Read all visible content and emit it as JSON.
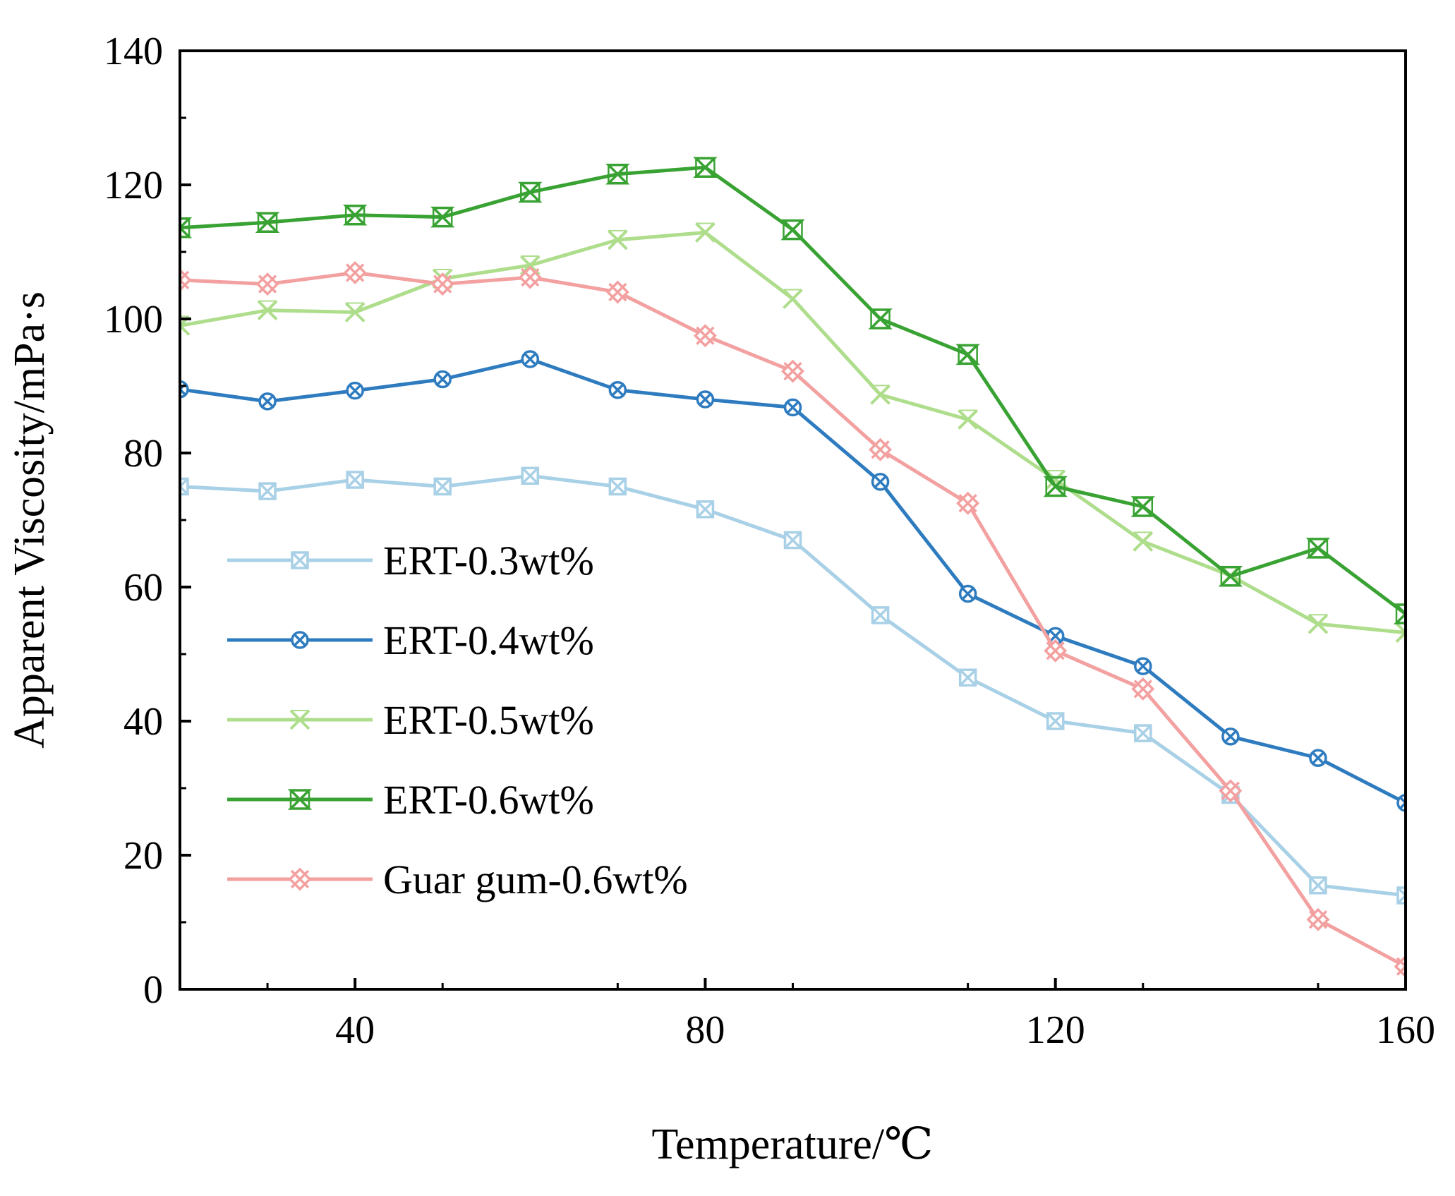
{
  "chart_data": {
    "type": "line",
    "title": "",
    "xlabel": "Temperature/℃",
    "ylabel": "Apparent Viscosity/mPa·s",
    "xlim": [
      20,
      160
    ],
    "ylim": [
      0,
      140
    ],
    "xticks": [
      40,
      80,
      120,
      160
    ],
    "yticks": [
      0,
      20,
      40,
      60,
      80,
      100,
      120,
      140
    ],
    "grid": false,
    "legend_position": "bottom-left",
    "x": [
      20,
      30,
      40,
      50,
      60,
      70,
      80,
      90,
      100,
      110,
      120,
      130,
      140,
      150,
      160
    ],
    "series": [
      {
        "name": "ERT-0.3wt%",
        "color": "#a8d0e6",
        "marker": "square-x",
        "values": [
          75,
          74.3,
          76,
          75,
          76.6,
          75,
          71.6,
          67,
          55.8,
          46.5,
          40,
          38.2,
          29,
          15.5,
          14
        ]
      },
      {
        "name": "ERT-0.4wt%",
        "color": "#2e7cbf",
        "marker": "circle-x",
        "values": [
          89.5,
          87.7,
          89.3,
          91,
          94,
          89.4,
          88,
          86.8,
          75.7,
          59,
          52.7,
          48.2,
          37.7,
          34.5,
          27.8
        ]
      },
      {
        "name": "ERT-0.5wt%",
        "color": "#aedd8c",
        "marker": "cross",
        "values": [
          99,
          101.3,
          101,
          106,
          108,
          111.8,
          112.9,
          103,
          88.7,
          85,
          76,
          66.8,
          61.7,
          54.5,
          53.2
        ]
      },
      {
        "name": "ERT-0.6wt%",
        "color": "#38a232",
        "marker": "hourglass",
        "values": [
          113.6,
          114.4,
          115.5,
          115.2,
          118.9,
          121.6,
          122.6,
          113.3,
          100,
          94.7,
          75,
          72,
          61.6,
          65.8,
          56
        ]
      },
      {
        "name": "Guar gum-0.6wt%",
        "color": "#f3a0a0",
        "marker": "diamond-x",
        "values": [
          105.8,
          105.2,
          106.9,
          105.2,
          106.2,
          104,
          97.5,
          92.2,
          80.5,
          72.5,
          50.5,
          44.8,
          29.6,
          10.4,
          3.4
        ]
      }
    ]
  }
}
